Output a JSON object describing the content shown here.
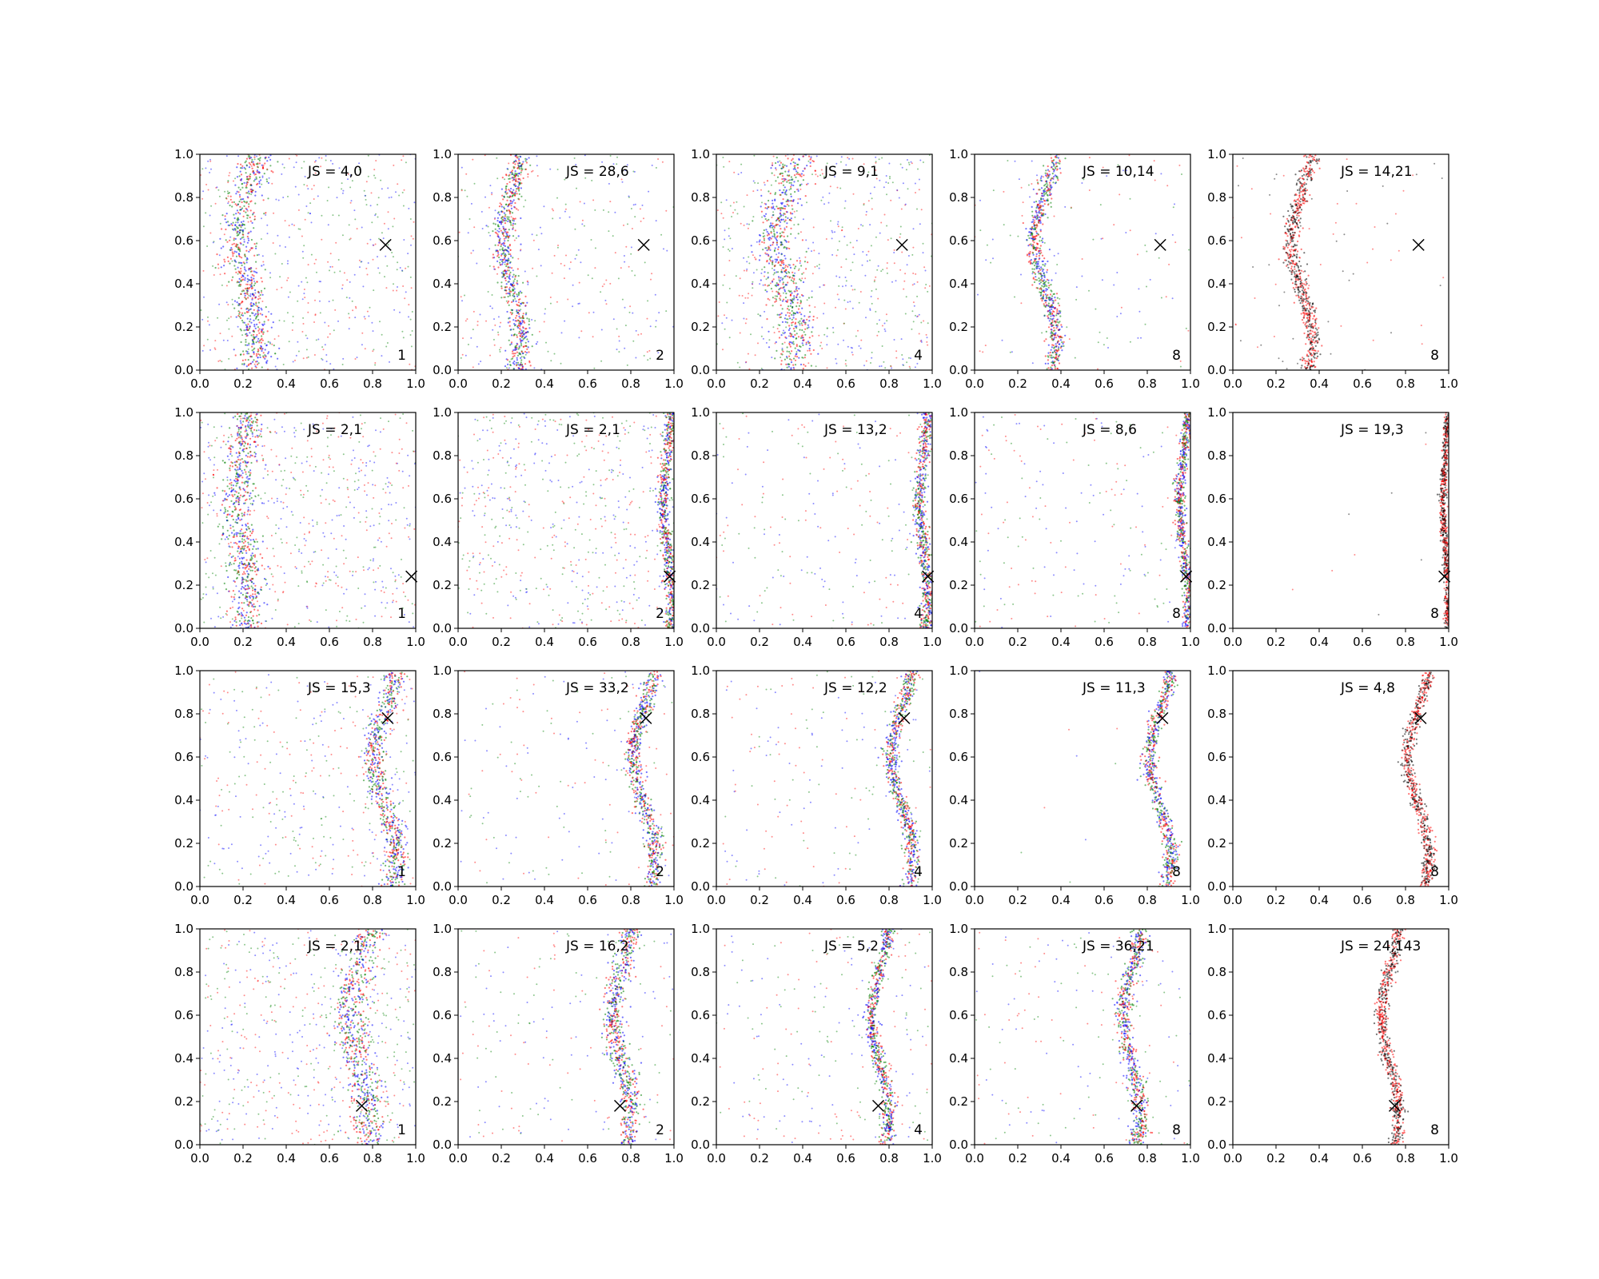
{
  "figure": {
    "rows": 4,
    "cols": 5,
    "xlim": [
      0,
      1
    ],
    "ylim": [
      0,
      1
    ],
    "x_ticks": [
      "0.0",
      "0.2",
      "0.4",
      "0.6",
      "0.8",
      "1.0"
    ],
    "y_ticks": [
      "0.0",
      "0.2",
      "0.4",
      "0.6",
      "0.8",
      "1.0"
    ],
    "grid": false
  },
  "colors": {
    "green": "#008000",
    "blue": "#0000ff",
    "red": "#ff0000",
    "black": "#000000",
    "marker": "#000000"
  },
  "chart_data": {
    "type": "scatter",
    "panels": [
      {
        "row": 0,
        "col": 0,
        "js_label": "JS = 4,0",
        "k_label": "1",
        "marker": [
          0.86,
          0.58
        ],
        "curve_center": 0.22,
        "curve_amp": 0.04,
        "band_width": 0.04,
        "background_density": 0.55,
        "colors": [
          "green",
          "blue",
          "red"
        ]
      },
      {
        "row": 0,
        "col": 1,
        "js_label": "JS = 28,6",
        "k_label": "2",
        "marker": [
          0.86,
          0.58
        ],
        "curve_center": 0.25,
        "curve_amp": 0.04,
        "band_width": 0.025,
        "background_density": 0.35,
        "colors": [
          "blue",
          "green",
          "red"
        ]
      },
      {
        "row": 0,
        "col": 2,
        "js_label": "JS = 9,1",
        "k_label": "4",
        "marker": [
          0.86,
          0.58
        ],
        "curve_center": 0.32,
        "curve_amp": 0.05,
        "band_width": 0.05,
        "background_density": 0.6,
        "colors": [
          "red",
          "blue",
          "green"
        ]
      },
      {
        "row": 0,
        "col": 3,
        "js_label": "JS = 10,14",
        "k_label": "8",
        "marker": [
          0.86,
          0.58
        ],
        "curve_center": 0.33,
        "curve_amp": 0.05,
        "band_width": 0.02,
        "background_density": 0.15,
        "colors": [
          "green",
          "blue",
          "red"
        ]
      },
      {
        "row": 0,
        "col": 4,
        "js_label": "JS = 14,21",
        "k_label": "8",
        "marker": [
          0.86,
          0.58
        ],
        "curve_center": 0.32,
        "curve_amp": 0.05,
        "band_width": 0.02,
        "background_density": 0.08,
        "colors": [
          "black",
          "red"
        ]
      },
      {
        "row": 1,
        "col": 0,
        "js_label": "JS = 2,1",
        "k_label": "1",
        "marker": [
          0.98,
          0.24
        ],
        "curve_center": 0.2,
        "curve_amp": 0.03,
        "band_width": 0.04,
        "background_density": 0.65,
        "colors": [
          "green",
          "blue",
          "red"
        ]
      },
      {
        "row": 1,
        "col": 1,
        "js_label": "JS = 2,1",
        "k_label": "2",
        "marker": [
          0.98,
          0.24
        ],
        "curve_center": 0.97,
        "curve_amp": 0.02,
        "band_width": 0.015,
        "background_density": 0.6,
        "colors": [
          "red",
          "blue",
          "green"
        ]
      },
      {
        "row": 1,
        "col": 2,
        "js_label": "JS = 13,2",
        "k_label": "4",
        "marker": [
          0.98,
          0.24
        ],
        "curve_center": 0.96,
        "curve_amp": 0.02,
        "band_width": 0.015,
        "background_density": 0.25,
        "colors": [
          "green",
          "blue",
          "red"
        ]
      },
      {
        "row": 1,
        "col": 3,
        "js_label": "JS = 8,6",
        "k_label": "8",
        "marker": [
          0.98,
          0.24
        ],
        "curve_center": 0.97,
        "curve_amp": 0.02,
        "band_width": 0.012,
        "background_density": 0.22,
        "colors": [
          "green",
          "blue",
          "red"
        ]
      },
      {
        "row": 1,
        "col": 4,
        "js_label": "JS = 19,3",
        "k_label": "8",
        "marker": [
          0.98,
          0.24
        ],
        "curve_center": 0.985,
        "curve_amp": 0.01,
        "band_width": 0.008,
        "background_density": 0.01,
        "colors": [
          "red",
          "black"
        ]
      },
      {
        "row": 2,
        "col": 0,
        "js_label": "JS = 15,3",
        "k_label": "1",
        "marker": [
          0.87,
          0.78
        ],
        "curve_center": 0.86,
        "curve_amp": 0.05,
        "band_width": 0.025,
        "background_density": 0.4,
        "colors": [
          "green",
          "blue",
          "red"
        ]
      },
      {
        "row": 2,
        "col": 1,
        "js_label": "JS = 33,2",
        "k_label": "2",
        "marker": [
          0.87,
          0.78
        ],
        "curve_center": 0.86,
        "curve_amp": 0.05,
        "band_width": 0.02,
        "background_density": 0.18,
        "colors": [
          "red",
          "blue",
          "green"
        ]
      },
      {
        "row": 2,
        "col": 2,
        "js_label": "JS = 12,2",
        "k_label": "4",
        "marker": [
          0.87,
          0.78
        ],
        "curve_center": 0.86,
        "curve_amp": 0.05,
        "band_width": 0.018,
        "background_density": 0.2,
        "colors": [
          "blue",
          "red",
          "green"
        ]
      },
      {
        "row": 2,
        "col": 3,
        "js_label": "JS = 11,3",
        "k_label": "8",
        "marker": [
          0.87,
          0.78
        ],
        "curve_center": 0.86,
        "curve_amp": 0.05,
        "band_width": 0.018,
        "background_density": 0.01,
        "colors": [
          "red",
          "blue",
          "green"
        ]
      },
      {
        "row": 2,
        "col": 4,
        "js_label": "JS = 4,8",
        "k_label": "8",
        "marker": [
          0.87,
          0.78
        ],
        "curve_center": 0.86,
        "curve_amp": 0.05,
        "band_width": 0.015,
        "background_density": 0.0,
        "colors": [
          "black",
          "red"
        ]
      },
      {
        "row": 3,
        "col": 0,
        "js_label": "JS = 2,1",
        "k_label": "1",
        "marker": [
          0.75,
          0.18
        ],
        "curve_center": 0.74,
        "curve_amp": 0.04,
        "band_width": 0.04,
        "background_density": 0.6,
        "colors": [
          "green",
          "blue",
          "red"
        ]
      },
      {
        "row": 3,
        "col": 1,
        "js_label": "JS = 16,2",
        "k_label": "2",
        "marker": [
          0.75,
          0.18
        ],
        "curve_center": 0.76,
        "curve_amp": 0.04,
        "band_width": 0.025,
        "background_density": 0.2,
        "colors": [
          "red",
          "blue",
          "green"
        ]
      },
      {
        "row": 3,
        "col": 2,
        "js_label": "JS = 5,2",
        "k_label": "4",
        "marker": [
          0.75,
          0.18
        ],
        "curve_center": 0.76,
        "curve_amp": 0.04,
        "band_width": 0.015,
        "background_density": 0.25,
        "colors": [
          "green",
          "blue",
          "red"
        ]
      },
      {
        "row": 3,
        "col": 3,
        "js_label": "JS = 36,21",
        "k_label": "8",
        "marker": [
          0.75,
          0.18
        ],
        "curve_center": 0.73,
        "curve_amp": 0.04,
        "band_width": 0.02,
        "background_density": 0.18,
        "colors": [
          "green",
          "blue",
          "red"
        ]
      },
      {
        "row": 3,
        "col": 4,
        "js_label": "JS = 24,143",
        "k_label": "8",
        "marker": [
          0.75,
          0.18
        ],
        "curve_center": 0.73,
        "curve_amp": 0.04,
        "band_width": 0.015,
        "background_density": 0.0,
        "colors": [
          "black",
          "red"
        ]
      }
    ]
  }
}
